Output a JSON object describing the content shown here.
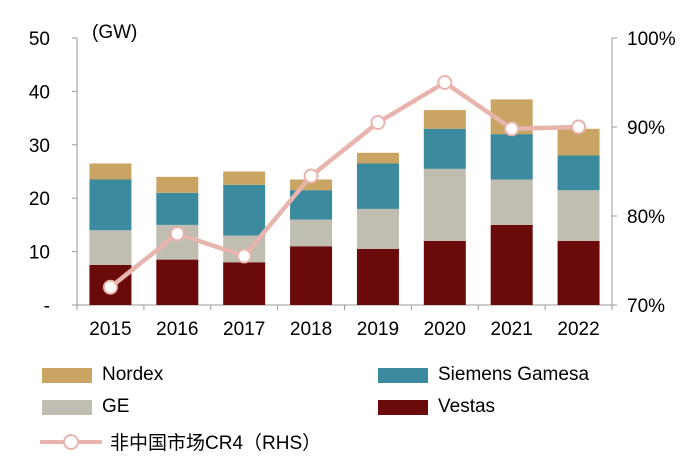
{
  "chart_data": {
    "type": "stacked-bar-with-line",
    "categories": [
      "2015",
      "2016",
      "2017",
      "2018",
      "2019",
      "2020",
      "2021",
      "2022"
    ],
    "left_axis": {
      "unit_label": "(GW)",
      "ylim": [
        0,
        50
      ],
      "ticks": [
        "-",
        "10",
        "20",
        "30",
        "40",
        "50"
      ],
      "tick_values": [
        0,
        10,
        20,
        30,
        40,
        50
      ]
    },
    "right_axis": {
      "ylim": [
        70,
        100
      ],
      "ticks": [
        "70%",
        "80%",
        "90%",
        "100%"
      ],
      "tick_values": [
        70,
        80,
        90,
        100
      ]
    },
    "series": [
      {
        "name": "Vestas",
        "color": "#6b0a0a",
        "values": [
          7.5,
          8.5,
          8.0,
          11.0,
          10.5,
          12.0,
          15.0,
          12.0
        ]
      },
      {
        "name": "GE",
        "color": "#bfbeb1",
        "values": [
          6.5,
          6.5,
          5.0,
          5.0,
          7.5,
          13.5,
          8.5,
          9.5
        ]
      },
      {
        "name": "Siemens Gamesa",
        "color": "#3b8a9e",
        "values": [
          9.5,
          6.0,
          9.5,
          5.5,
          8.5,
          7.5,
          8.5,
          6.5
        ]
      },
      {
        "name": "Nordex",
        "color": "#c9a463",
        "values": [
          3.0,
          3.0,
          2.5,
          2.0,
          2.0,
          3.5,
          6.5,
          5.0
        ]
      }
    ],
    "line": {
      "name": "非中国市场CR4（RHS）",
      "color": "#e8b4ae",
      "values": [
        72,
        78,
        75.5,
        84.5,
        90.5,
        95,
        89.8,
        90
      ]
    },
    "legend": [
      {
        "label": "Nordex",
        "kind": "bar",
        "series": 3
      },
      {
        "label": "Siemens Gamesa",
        "kind": "bar",
        "series": 2
      },
      {
        "label": "GE",
        "kind": "bar",
        "series": 1
      },
      {
        "label": "Vestas",
        "kind": "bar",
        "series": 0
      },
      {
        "label": "非中国市场CR4（RHS）",
        "kind": "line"
      }
    ]
  }
}
